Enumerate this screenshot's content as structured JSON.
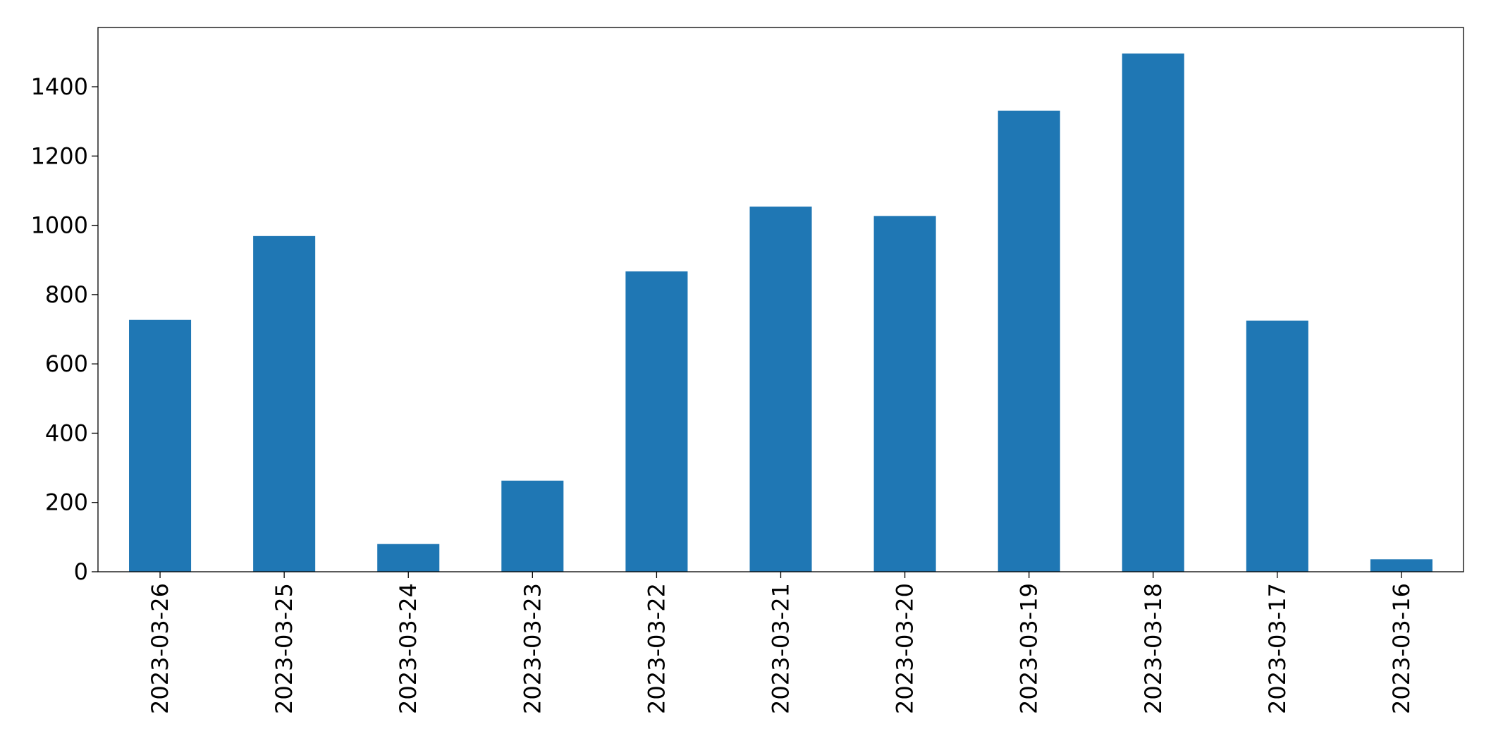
{
  "chart_data": {
    "type": "bar",
    "categories": [
      "2023-03-26",
      "2023-03-25",
      "2023-03-24",
      "2023-03-23",
      "2023-03-22",
      "2023-03-21",
      "2023-03-20",
      "2023-03-19",
      "2023-03-18",
      "2023-03-17",
      "2023-03-16"
    ],
    "values": [
      727,
      969,
      80,
      263,
      867,
      1054,
      1027,
      1331,
      1496,
      725,
      36
    ],
    "color": "#1f77b4",
    "ylim": [
      0,
      1571
    ],
    "yticks": [
      0,
      200,
      400,
      600,
      800,
      1000,
      1200,
      1400
    ],
    "grid": false
  }
}
